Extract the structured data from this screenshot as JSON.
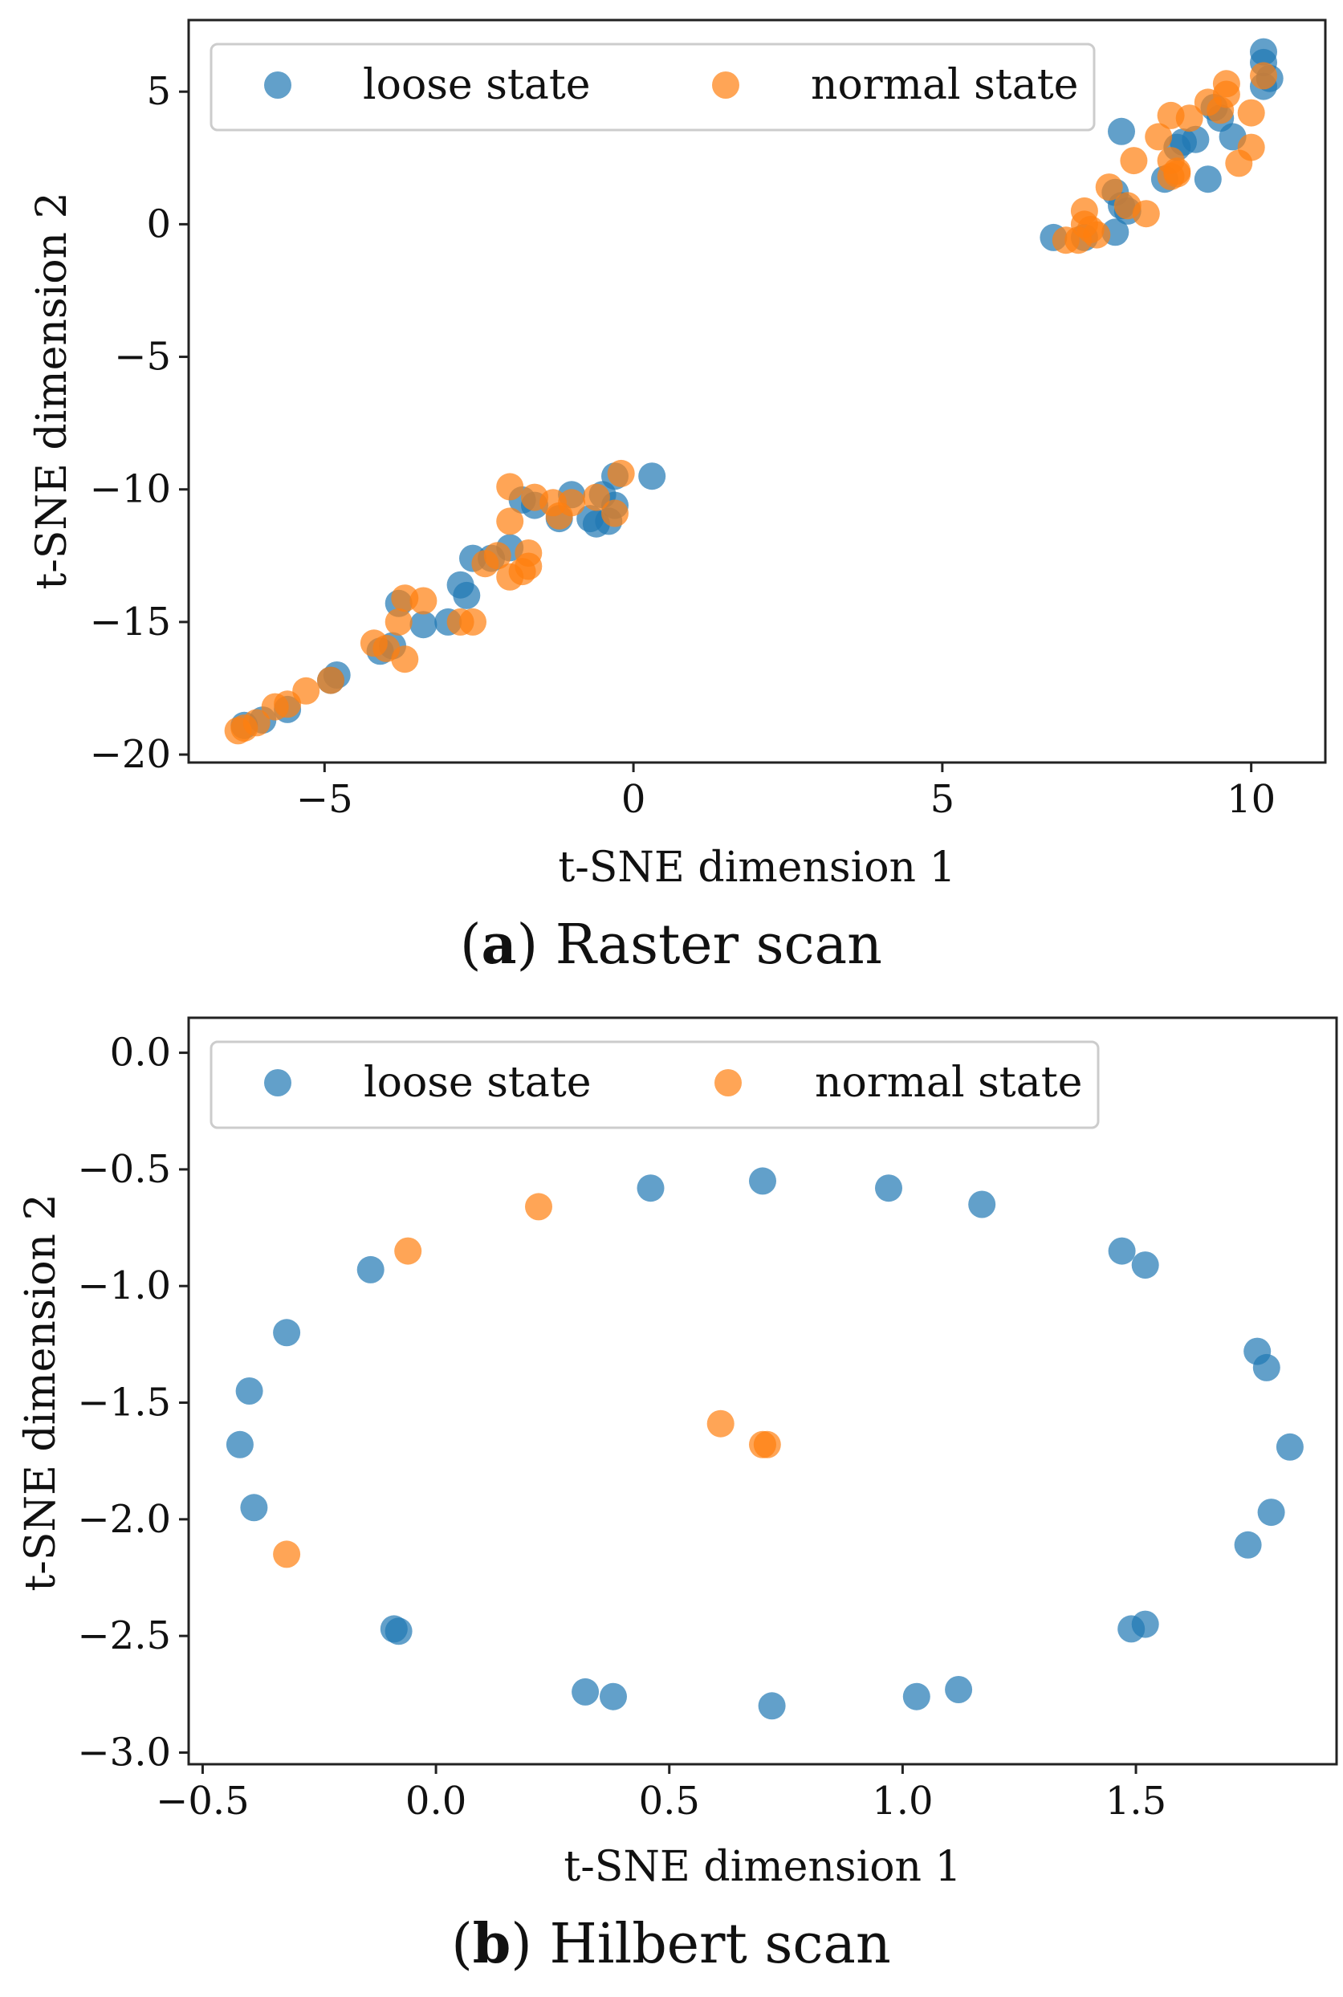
{
  "colors": {
    "loose": "#1f77b4",
    "normal": "#ff7f0e"
  },
  "chart_data": [
    {
      "type": "scatter",
      "caption_letter": "a",
      "caption_text": "Raster scan",
      "xlabel": "t-SNE dimension 1",
      "ylabel": "t-SNE dimension 2",
      "xlim": [
        -7.2,
        11.2
      ],
      "ylim": [
        -20.3,
        7.7
      ],
      "xticks": [
        -5,
        0,
        5,
        10
      ],
      "yticks": [
        5,
        0,
        -5,
        -10,
        -15,
        -20
      ],
      "xtick_labels": [
        "−5",
        "0",
        "5",
        "10"
      ],
      "ytick_labels": [
        "5",
        "0",
        "−5",
        "−10",
        "−15",
        "−20"
      ],
      "legend": {
        "position": "top",
        "entries": [
          "loose state",
          "normal state"
        ]
      },
      "series": [
        {
          "name": "loose state",
          "points": [
            [
              10.2,
              6.5
            ],
            [
              10.2,
              6.1
            ],
            [
              10.3,
              5.5
            ],
            [
              10.2,
              5.2
            ],
            [
              9.5,
              4.0
            ],
            [
              9.4,
              4.4
            ],
            [
              9.7,
              3.3
            ],
            [
              9.1,
              3.2
            ],
            [
              8.9,
              3.1
            ],
            [
              8.8,
              2.9
            ],
            [
              8.6,
              1.7
            ],
            [
              9.3,
              1.7
            ],
            [
              7.9,
              3.5
            ],
            [
              7.8,
              1.2
            ],
            [
              7.9,
              0.7
            ],
            [
              8.0,
              0.5
            ],
            [
              7.8,
              -0.3
            ],
            [
              7.3,
              -0.5
            ],
            [
              6.8,
              -0.5
            ],
            [
              -0.3,
              -9.5
            ],
            [
              0.3,
              -9.5
            ],
            [
              -0.5,
              -10.2
            ],
            [
              -1.0,
              -10.2
            ],
            [
              -0.3,
              -10.6
            ],
            [
              -0.7,
              -11.1
            ],
            [
              -0.4,
              -11.2
            ],
            [
              -0.6,
              -11.3
            ],
            [
              -1.2,
              -11.1
            ],
            [
              -1.6,
              -10.6
            ],
            [
              -1.8,
              -10.4
            ],
            [
              -2.0,
              -12.2
            ],
            [
              -2.3,
              -12.6
            ],
            [
              -2.6,
              -12.6
            ],
            [
              -2.8,
              -13.6
            ],
            [
              -2.7,
              -14.0
            ],
            [
              -3.0,
              -15.0
            ],
            [
              -3.4,
              -15.1
            ],
            [
              -3.8,
              -14.3
            ],
            [
              -3.9,
              -15.9
            ],
            [
              -4.1,
              -16.1
            ],
            [
              -4.8,
              -17.0
            ],
            [
              -4.9,
              -17.2
            ],
            [
              -5.6,
              -18.3
            ],
            [
              -6.0,
              -18.7
            ],
            [
              -6.3,
              -18.9
            ]
          ]
        },
        {
          "name": "normal state",
          "points": [
            [
              10.2,
              5.6
            ],
            [
              9.6,
              5.3
            ],
            [
              9.6,
              4.9
            ],
            [
              9.3,
              4.6
            ],
            [
              9.5,
              4.3
            ],
            [
              10.0,
              4.2
            ],
            [
              8.7,
              4.1
            ],
            [
              9.0,
              4.0
            ],
            [
              10.0,
              2.9
            ],
            [
              9.8,
              2.3
            ],
            [
              8.5,
              3.3
            ],
            [
              8.7,
              2.4
            ],
            [
              8.1,
              2.4
            ],
            [
              8.8,
              2.0
            ],
            [
              8.7,
              1.8
            ],
            [
              8.8,
              1.9
            ],
            [
              7.7,
              1.4
            ],
            [
              8.3,
              0.4
            ],
            [
              8.0,
              0.7
            ],
            [
              7.3,
              0.5
            ],
            [
              7.3,
              0.0
            ],
            [
              7.4,
              -0.2
            ],
            [
              7.5,
              -0.4
            ],
            [
              7.2,
              -0.6
            ],
            [
              7.0,
              -0.6
            ],
            [
              -0.2,
              -9.4
            ],
            [
              -2.0,
              -9.9
            ],
            [
              -1.6,
              -10.3
            ],
            [
              -1.3,
              -10.5
            ],
            [
              -1.0,
              -10.5
            ],
            [
              -0.6,
              -10.3
            ],
            [
              -0.3,
              -10.9
            ],
            [
              -1.2,
              -11.0
            ],
            [
              -2.0,
              -11.2
            ],
            [
              -1.7,
              -12.4
            ],
            [
              -1.7,
              -12.9
            ],
            [
              -1.8,
              -13.1
            ],
            [
              -2.0,
              -13.3
            ],
            [
              -2.2,
              -12.5
            ],
            [
              -2.4,
              -12.8
            ],
            [
              -2.8,
              -15.0
            ],
            [
              -2.6,
              -15.0
            ],
            [
              -3.4,
              -14.2
            ],
            [
              -3.7,
              -14.1
            ],
            [
              -3.8,
              -15.0
            ],
            [
              -3.7,
              -16.4
            ],
            [
              -4.0,
              -16.0
            ],
            [
              -4.2,
              -15.8
            ],
            [
              -4.9,
              -17.2
            ],
            [
              -5.3,
              -17.6
            ],
            [
              -5.6,
              -18.1
            ],
            [
              -5.8,
              -18.2
            ],
            [
              -6.1,
              -18.8
            ],
            [
              -6.3,
              -19.0
            ],
            [
              -6.4,
              -19.1
            ]
          ]
        }
      ]
    },
    {
      "type": "scatter",
      "caption_letter": "b",
      "caption_text": "Hilbert scan",
      "xlabel": "t-SNE dimension 1",
      "ylabel": "t-SNE dimension 2",
      "xlim": [
        -0.53,
        1.93
      ],
      "ylim": [
        -3.05,
        0.15
      ],
      "xticks": [
        -0.5,
        0.0,
        0.5,
        1.0,
        1.5
      ],
      "yticks": [
        0.0,
        -0.5,
        -1.0,
        -1.5,
        -2.0,
        -2.5,
        -3.0
      ],
      "xtick_labels": [
        "−0.5",
        "0.0",
        "0.5",
        "1.0",
        "1.5"
      ],
      "ytick_labels": [
        "0.0",
        "−0.5",
        "−1.0",
        "−1.5",
        "−2.0",
        "−2.5",
        "−3.0"
      ],
      "legend": {
        "position": "top",
        "entries": [
          "loose state",
          "normal state"
        ]
      },
      "series": [
        {
          "name": "loose state",
          "points": [
            [
              0.46,
              -0.58
            ],
            [
              0.7,
              -0.55
            ],
            [
              0.97,
              -0.58
            ],
            [
              1.17,
              -0.65
            ],
            [
              1.47,
              -0.85
            ],
            [
              1.52,
              -0.91
            ],
            [
              1.76,
              -1.28
            ],
            [
              1.78,
              -1.35
            ],
            [
              1.83,
              -1.69
            ],
            [
              1.79,
              -1.97
            ],
            [
              1.74,
              -2.11
            ],
            [
              1.52,
              -2.45
            ],
            [
              1.49,
              -2.47
            ],
            [
              1.12,
              -2.73
            ],
            [
              1.03,
              -2.76
            ],
            [
              0.72,
              -2.8
            ],
            [
              0.38,
              -2.76
            ],
            [
              0.32,
              -2.74
            ],
            [
              -0.08,
              -2.48
            ],
            [
              -0.09,
              -2.47
            ],
            [
              -0.39,
              -1.95
            ],
            [
              -0.42,
              -1.68
            ],
            [
              -0.4,
              -1.45
            ],
            [
              -0.32,
              -1.2
            ],
            [
              -0.14,
              -0.93
            ]
          ]
        },
        {
          "name": "normal state",
          "points": [
            [
              0.22,
              -0.66
            ],
            [
              -0.06,
              -0.85
            ],
            [
              0.61,
              -1.59
            ],
            [
              0.7,
              -1.68
            ],
            [
              0.71,
              -1.68
            ],
            [
              -0.32,
              -2.15
            ]
          ]
        }
      ]
    }
  ]
}
